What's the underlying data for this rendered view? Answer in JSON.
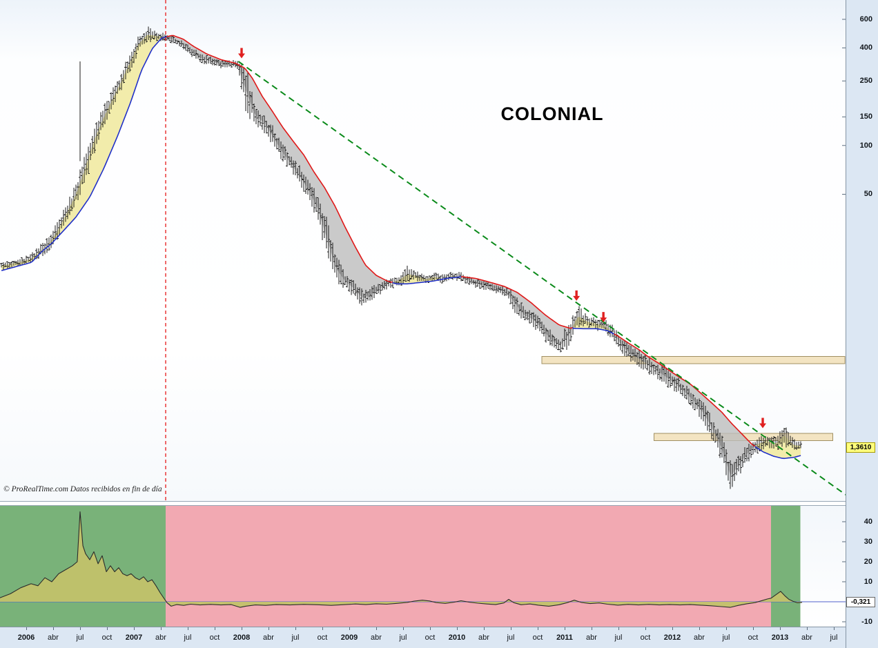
{
  "watermark": {
    "copyright": "© ProRealTime.com",
    "note": "Datos recibidos en fin de día"
  },
  "colors": {
    "bar": "#1a1a1a",
    "ma_bull": "#2030c8",
    "ma_bear": "#e01818",
    "fill_above": "#f1eba6",
    "fill_below": "#bdbdbd",
    "trendline": "#0a8a1a",
    "event_line": "#e82828",
    "arrow": "#e02020",
    "zone_fill": "#f3e4c2",
    "zone_border": "#a08f62",
    "regime_green": "#79b279",
    "regime_red": "#f2a9b2",
    "indicator_area": "#c2c26a",
    "indicator_line": "#2b2b2b",
    "zero_line": "#5060cc",
    "price_tag_bg": "#ffff7d",
    "axis_bg": "#dce7f3"
  },
  "chart_data": [
    {
      "type": "ohlc-bar",
      "title": "COLONIAL",
      "y_scale": "log",
      "y_ticks": [
        600,
        400,
        250,
        150,
        100,
        50
      ],
      "last_close": 1.361,
      "last_close_label": "1,3610",
      "base_year": 2006,
      "bars_start_month": -3,
      "bars_end_month": 86.4,
      "monthly_bars_low_high": [
        [
          17,
          19.5
        ],
        [
          17.5,
          20
        ],
        [
          18,
          20.5
        ],
        [
          18.5,
          21.5
        ],
        [
          20,
          24.5
        ],
        [
          21.5,
          28
        ],
        [
          26,
          34
        ],
        [
          33,
          44
        ],
        [
          42,
          58
        ],
        [
          55,
          90
        ],
        [
          85,
          130
        ],
        [
          120,
          170
        ],
        [
          160,
          220
        ],
        [
          210,
          280
        ],
        [
          270,
          380
        ],
        [
          370,
          480
        ],
        [
          430,
          545
        ],
        [
          440,
          510
        ],
        [
          440,
          500
        ],
        [
          420,
          470
        ],
        [
          390,
          440
        ],
        [
          350,
          410
        ],
        [
          320,
          370
        ],
        [
          310,
          355
        ],
        [
          300,
          340
        ],
        [
          295,
          335
        ],
        [
          300,
          340
        ],
        [
          150,
          320
        ],
        [
          135,
          175
        ],
        [
          120,
          160
        ],
        [
          95,
          135
        ],
        [
          80,
          105
        ],
        [
          68,
          88
        ],
        [
          55,
          75
        ],
        [
          45,
          62
        ],
        [
          33,
          50
        ],
        [
          20,
          36
        ],
        [
          14,
          22
        ],
        [
          13,
          16.5
        ],
        [
          11.5,
          15
        ],
        [
          10,
          13
        ],
        [
          11,
          13.5
        ],
        [
          12,
          14.5
        ],
        [
          13,
          15.5
        ],
        [
          13.5,
          16
        ],
        [
          14,
          18.5
        ],
        [
          14.5,
          17
        ],
        [
          14,
          16
        ],
        [
          14.5,
          16.5
        ],
        [
          14,
          16
        ],
        [
          14.5,
          17
        ],
        [
          14.5,
          16.5
        ],
        [
          13.5,
          15.5
        ],
        [
          13,
          15
        ],
        [
          12.5,
          14.5
        ],
        [
          12,
          14
        ],
        [
          11.5,
          13.5
        ],
        [
          9,
          12.5
        ],
        [
          8,
          10
        ],
        [
          7.5,
          9.5
        ],
        [
          6.5,
          8.5
        ],
        [
          5.5,
          7.2
        ],
        [
          5.2,
          6.5
        ],
        [
          5.5,
          8.5
        ],
        [
          7.5,
          10.5
        ],
        [
          7.5,
          9
        ],
        [
          7.2,
          8.8
        ],
        [
          7,
          8.5
        ],
        [
          6,
          7.8
        ],
        [
          5,
          6.5
        ],
        [
          4.5,
          5.8
        ],
        [
          4.2,
          5.4
        ],
        [
          3.8,
          5
        ],
        [
          3.5,
          4.6
        ],
        [
          3.2,
          4.2
        ],
        [
          2.9,
          3.8
        ],
        [
          2.6,
          3.4
        ],
        [
          2.3,
          3
        ],
        [
          1.9,
          2.6
        ],
        [
          1.5,
          2.1
        ],
        [
          1.1,
          1.7
        ],
        [
          0.72,
          1.15
        ],
        [
          0.9,
          1.3
        ],
        [
          1.1,
          1.5
        ],
        [
          1.25,
          1.65
        ],
        [
          1.3,
          1.75
        ],
        [
          1.3,
          1.6
        ],
        [
          1.35,
          1.97
        ],
        [
          1.3,
          1.55
        ],
        [
          1.32,
          1.48
        ]
      ],
      "wick_spike": {
        "t": 2006.5,
        "low": 80,
        "high": 330
      },
      "ma_points": [
        [
          2005.756,
          16.8
        ],
        [
          2006.05,
          19
        ],
        [
          2006.14,
          22
        ],
        [
          2006.24,
          25
        ],
        [
          2006.33,
          29
        ],
        [
          2006.46,
          36
        ],
        [
          2006.59,
          48
        ],
        [
          2006.72,
          72
        ],
        [
          2006.85,
          115
        ],
        [
          2006.97,
          185
        ],
        [
          2007.07,
          290
        ],
        [
          2007.17,
          395
        ],
        [
          2007.26,
          462
        ],
        [
          2007.36,
          478
        ],
        [
          2007.46,
          452
        ],
        [
          2007.55,
          410
        ],
        [
          2007.68,
          366
        ],
        [
          2007.81,
          338
        ],
        [
          2007.94,
          322
        ],
        [
          2008.03,
          300
        ],
        [
          2008.1,
          260
        ],
        [
          2008.19,
          202
        ],
        [
          2008.29,
          161
        ],
        [
          2008.38,
          130
        ],
        [
          2008.48,
          106
        ],
        [
          2008.58,
          87
        ],
        [
          2008.67,
          69
        ],
        [
          2008.77,
          55
        ],
        [
          2008.87,
          42
        ],
        [
          2008.96,
          31.5
        ],
        [
          2009.06,
          23.4
        ],
        [
          2009.15,
          18.3
        ],
        [
          2009.25,
          15.8
        ],
        [
          2009.35,
          14.6
        ],
        [
          2009.44,
          14.0
        ],
        [
          2009.54,
          14.0
        ],
        [
          2009.67,
          14.3
        ],
        [
          2009.79,
          14.6
        ],
        [
          2009.92,
          15.2
        ],
        [
          2010.05,
          15.5
        ],
        [
          2010.18,
          15.1
        ],
        [
          2010.31,
          14.3
        ],
        [
          2010.44,
          13.5
        ],
        [
          2010.56,
          12.4
        ],
        [
          2010.69,
          10.7
        ],
        [
          2010.82,
          9.0
        ],
        [
          2010.95,
          7.8
        ],
        [
          2011.05,
          7.45
        ],
        [
          2011.17,
          7.4
        ],
        [
          2011.3,
          7.4
        ],
        [
          2011.4,
          7.2
        ],
        [
          2011.49,
          6.7
        ],
        [
          2011.59,
          6.05
        ],
        [
          2011.69,
          5.5
        ],
        [
          2011.78,
          4.95
        ],
        [
          2011.88,
          4.5
        ],
        [
          2011.97,
          4.1
        ],
        [
          2012.07,
          3.7
        ],
        [
          2012.17,
          3.36
        ],
        [
          2012.26,
          2.98
        ],
        [
          2012.36,
          2.6
        ],
        [
          2012.46,
          2.26
        ],
        [
          2012.55,
          1.93
        ],
        [
          2012.65,
          1.65
        ],
        [
          2012.74,
          1.43
        ],
        [
          2012.84,
          1.29
        ],
        [
          2012.94,
          1.21
        ],
        [
          2013.03,
          1.17
        ],
        [
          2013.13,
          1.19
        ],
        [
          2013.21,
          1.23
        ]
      ],
      "trendline": {
        "t1": 2007.97,
        "v1": 330,
        "t2": 2013.61,
        "v2": 0.7
      },
      "event_line_t": 2007.295,
      "arrows": [
        {
          "t": 2008.0,
          "v": 345
        },
        {
          "t": 2011.11,
          "v": 11
        },
        {
          "t": 2011.36,
          "v": 8.1
        },
        {
          "t": 2012.84,
          "v": 1.8
        }
      ],
      "zones": [
        {
          "t1": 2010.79,
          "t2": 2013.62,
          "v_low": 4.5,
          "v_high": 5.0
        },
        {
          "t1": 2011.83,
          "t2": 2013.49,
          "v_low": 1.51,
          "v_high": 1.67
        }
      ]
    },
    {
      "type": "area",
      "name": "momentum-indicator",
      "y_ticks": [
        40,
        30,
        20,
        10,
        -10
      ],
      "last_value": -0.321,
      "last_value_label": "-0,321",
      "regimes": [
        {
          "t1": 2005.756,
          "t2": 2007.295,
          "color": "#79b279"
        },
        {
          "t1": 2007.295,
          "t2": 2012.917,
          "color": "#f2a9b2"
        },
        {
          "t1": 2012.917,
          "t2": 2013.19,
          "color": "#79b279"
        }
      ],
      "points": [
        [
          2005.756,
          2
        ],
        [
          2005.853,
          4
        ],
        [
          2005.949,
          7
        ],
        [
          2006.045,
          9
        ],
        [
          2006.109,
          8
        ],
        [
          2006.173,
          12
        ],
        [
          2006.237,
          10
        ],
        [
          2006.301,
          14
        ],
        [
          2006.365,
          16
        ],
        [
          2006.429,
          18
        ],
        [
          2006.474,
          20
        ],
        [
          2006.5,
          45
        ],
        [
          2006.526,
          28
        ],
        [
          2006.551,
          24
        ],
        [
          2006.59,
          21
        ],
        [
          2006.628,
          25
        ],
        [
          2006.667,
          19
        ],
        [
          2006.705,
          23
        ],
        [
          2006.744,
          15
        ],
        [
          2006.782,
          18
        ],
        [
          2006.821,
          15
        ],
        [
          2006.859,
          17
        ],
        [
          2006.897,
          14
        ],
        [
          2006.936,
          13
        ],
        [
          2006.974,
          14
        ],
        [
          2007.013,
          12
        ],
        [
          2007.051,
          11
        ],
        [
          2007.09,
          12.5
        ],
        [
          2007.128,
          10
        ],
        [
          2007.167,
          11
        ],
        [
          2007.205,
          8
        ],
        [
          2007.244,
          4.5
        ],
        [
          2007.282,
          1.5
        ],
        [
          2007.308,
          -0.5
        ],
        [
          2007.346,
          -2.2
        ],
        [
          2007.397,
          -1.4
        ],
        [
          2007.462,
          -1.8
        ],
        [
          2007.526,
          -1.2
        ],
        [
          2007.615,
          -1.6
        ],
        [
          2007.712,
          -1.3
        ],
        [
          2007.808,
          -1.6
        ],
        [
          2007.904,
          -1.4
        ],
        [
          2007.987,
          -2.8
        ],
        [
          2008.038,
          -2.2
        ],
        [
          2008.128,
          -1.6
        ],
        [
          2008.224,
          -1.8
        ],
        [
          2008.321,
          -1.4
        ],
        [
          2008.449,
          -1.6
        ],
        [
          2008.577,
          -1.3
        ],
        [
          2008.705,
          -1.5
        ],
        [
          2008.833,
          -1.8
        ],
        [
          2008.962,
          -1.4
        ],
        [
          2009.058,
          -1.1
        ],
        [
          2009.154,
          -1.4
        ],
        [
          2009.25,
          -1.0
        ],
        [
          2009.346,
          -1.2
        ],
        [
          2009.442,
          -0.8
        ],
        [
          2009.538,
          -0.3
        ],
        [
          2009.603,
          0.3
        ],
        [
          2009.679,
          0.8
        ],
        [
          2009.744,
          0.4
        ],
        [
          2009.808,
          -0.4
        ],
        [
          2009.891,
          -0.8
        ],
        [
          2009.974,
          -0.2
        ],
        [
          2010.038,
          0.5
        ],
        [
          2010.115,
          -0.2
        ],
        [
          2010.192,
          -0.7
        ],
        [
          2010.276,
          -1.1
        ],
        [
          2010.359,
          -1.4
        ],
        [
          2010.436,
          -0.6
        ],
        [
          2010.481,
          1.2
        ],
        [
          2010.526,
          -0.4
        ],
        [
          2010.596,
          -1.5
        ],
        [
          2010.679,
          -1.1
        ],
        [
          2010.756,
          -1.7
        ],
        [
          2010.853,
          -2.2
        ],
        [
          2010.949,
          -1.5
        ],
        [
          2011.026,
          -0.4
        ],
        [
          2011.09,
          0.8
        ],
        [
          2011.154,
          -0.3
        ],
        [
          2011.237,
          -0.9
        ],
        [
          2011.321,
          -0.6
        ],
        [
          2011.397,
          -1.2
        ],
        [
          2011.494,
          -1.7
        ],
        [
          2011.59,
          -1.3
        ],
        [
          2011.686,
          -1.6
        ],
        [
          2011.782,
          -1.3
        ],
        [
          2011.878,
          -1.6
        ],
        [
          2011.974,
          -1.4
        ],
        [
          2012.071,
          -1.6
        ],
        [
          2012.167,
          -1.4
        ],
        [
          2012.263,
          -1.7
        ],
        [
          2012.359,
          -2.0
        ],
        [
          2012.455,
          -2.4
        ],
        [
          2012.538,
          -2.8
        ],
        [
          2012.615,
          -1.8
        ],
        [
          2012.692,
          -1.0
        ],
        [
          2012.769,
          -0.4
        ],
        [
          2012.833,
          0.6
        ],
        [
          2012.885,
          1.4
        ],
        [
          2012.917,
          1.8
        ],
        [
          2012.962,
          3.5
        ],
        [
          2013.006,
          5.2
        ],
        [
          2013.045,
          3.0
        ],
        [
          2013.083,
          1.2
        ],
        [
          2013.122,
          0.2
        ],
        [
          2013.16,
          -0.5
        ],
        [
          2013.205,
          -0.321
        ]
      ]
    }
  ],
  "time_axis": {
    "labels": [
      {
        "t": 2006,
        "label": "2006",
        "bold": true
      },
      {
        "t": 2006.25,
        "label": "abr"
      },
      {
        "t": 2006.5,
        "label": "jul"
      },
      {
        "t": 2006.75,
        "label": "oct"
      },
      {
        "t": 2007,
        "label": "2007",
        "bold": true
      },
      {
        "t": 2007.25,
        "label": "abr"
      },
      {
        "t": 2007.5,
        "label": "jul"
      },
      {
        "t": 2007.75,
        "label": "oct"
      },
      {
        "t": 2008,
        "label": "2008",
        "bold": true
      },
      {
        "t": 2008.25,
        "label": "abr"
      },
      {
        "t": 2008.5,
        "label": "jul"
      },
      {
        "t": 2008.75,
        "label": "oct"
      },
      {
        "t": 2009,
        "label": "2009",
        "bold": true
      },
      {
        "t": 2009.25,
        "label": "abr"
      },
      {
        "t": 2009.5,
        "label": "jul"
      },
      {
        "t": 2009.75,
        "label": "oct"
      },
      {
        "t": 2010,
        "label": "2010",
        "bold": true
      },
      {
        "t": 2010.25,
        "label": "abr"
      },
      {
        "t": 2010.5,
        "label": "jul"
      },
      {
        "t": 2010.75,
        "label": "oct"
      },
      {
        "t": 2011,
        "label": "2011",
        "bold": true
      },
      {
        "t": 2011.25,
        "label": "abr"
      },
      {
        "t": 2011.5,
        "label": "jul"
      },
      {
        "t": 2011.75,
        "label": "oct"
      },
      {
        "t": 2012,
        "label": "2012",
        "bold": true
      },
      {
        "t": 2012.25,
        "label": "abr"
      },
      {
        "t": 2012.5,
        "label": "jul"
      },
      {
        "t": 2012.75,
        "label": "oct"
      },
      {
        "t": 2013,
        "label": "2013",
        "bold": true
      },
      {
        "t": 2013.25,
        "label": "abr"
      },
      {
        "t": 2013.5,
        "label": "jul"
      }
    ]
  }
}
